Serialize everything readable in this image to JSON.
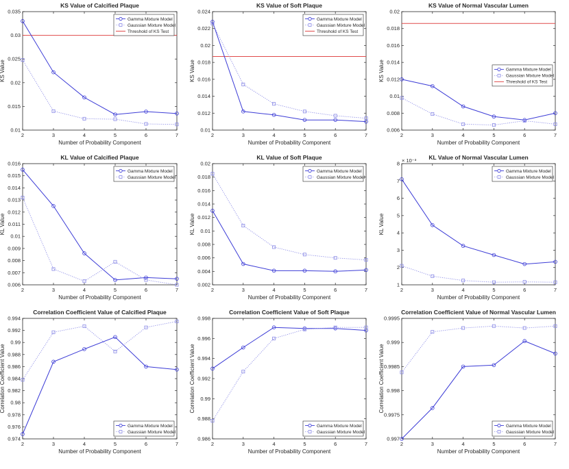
{
  "colors": {
    "gamma": "#3b3bd6",
    "gaussian": "#8a8ae6",
    "threshold": "#e04a4a",
    "axis": "#262626",
    "legend_border": "#262626"
  },
  "chart_data": [
    {
      "type": "line",
      "title": "KS Value of Calcified Plaque",
      "xlabel": "Number of Probability Component",
      "ylabel": "KS Value",
      "x": [
        2,
        3,
        4,
        5,
        6,
        7
      ],
      "xlim": [
        2,
        7
      ],
      "ylim": [
        0.01,
        0.035
      ],
      "yticks": [
        "0.01",
        "0.015",
        "0.02",
        "0.025",
        "0.03",
        "0.035"
      ],
      "exponent": "",
      "legend_position": "top-right",
      "series": [
        {
          "name": "Gamma Mixture Model",
          "style": "solid-circle",
          "values": [
            0.033,
            0.0222,
            0.0169,
            0.0133,
            0.0139,
            0.0135
          ]
        },
        {
          "name": "Gaussian Mixture Model",
          "style": "dotted-square",
          "values": [
            0.0248,
            0.014,
            0.0124,
            0.0123,
            0.0113,
            0.0112
          ]
        }
      ],
      "threshold": {
        "name": "Threshold of KS Test",
        "value": 0.03
      }
    },
    {
      "type": "line",
      "title": "KS Value of Soft Plaque",
      "xlabel": "Number of Probability Component",
      "ylabel": "KS Value",
      "x": [
        2,
        3,
        4,
        5,
        6,
        7
      ],
      "xlim": [
        2,
        7
      ],
      "ylim": [
        0.01,
        0.024
      ],
      "yticks": [
        "0.01",
        "0.012",
        "0.014",
        "0.016",
        "0.018",
        "0.02",
        "0.022",
        "0.024"
      ],
      "exponent": "",
      "legend_position": "top-right",
      "series": [
        {
          "name": "Gamma Mixture Model",
          "style": "solid-circle",
          "values": [
            0.0228,
            0.0122,
            0.0118,
            0.0112,
            0.0112,
            0.011
          ]
        },
        {
          "name": "Gaussian Mixture Model",
          "style": "dotted-square",
          "values": [
            0.0226,
            0.0154,
            0.0131,
            0.0122,
            0.0117,
            0.0114
          ]
        }
      ],
      "threshold": {
        "name": "Threshold of KS Test",
        "value": 0.0187
      }
    },
    {
      "type": "line",
      "title": "KS Value of Normal Vascular Lumen",
      "xlabel": "Number of Probability Component",
      "ylabel": "KS Value",
      "x": [
        2,
        3,
        4,
        5,
        6,
        7
      ],
      "xlim": [
        2,
        7
      ],
      "ylim": [
        0.006,
        0.02
      ],
      "yticks": [
        "0.006",
        "0.008",
        "0.01",
        "0.012",
        "0.014",
        "0.016",
        "0.018",
        "0.02"
      ],
      "exponent": "",
      "legend_position": "middle-right",
      "series": [
        {
          "name": "Gamma Mixture Model",
          "style": "solid-circle",
          "values": [
            0.012,
            0.0112,
            0.0088,
            0.0076,
            0.0072,
            0.008
          ]
        },
        {
          "name": "Gaussian Mixture Model",
          "style": "dotted-square",
          "values": [
            0.0098,
            0.0079,
            0.0067,
            0.0066,
            0.0071,
            0.0067
          ]
        }
      ],
      "threshold": {
        "name": "Threshold of KS Test",
        "value": 0.0186
      }
    },
    {
      "type": "line",
      "title": "KL Value of Calcified Plaque",
      "xlabel": "Number of Probability Component",
      "ylabel": "KL Value",
      "x": [
        2,
        3,
        4,
        5,
        6,
        7
      ],
      "xlim": [
        2,
        7
      ],
      "ylim": [
        0.006,
        0.016
      ],
      "yticks": [
        "0.006",
        "0.007",
        "0.008",
        "0.009",
        "0.01",
        "0.011",
        "0.012",
        "0.013",
        "0.014",
        "0.015",
        "0.016"
      ],
      "exponent": "",
      "legend_position": "top-right",
      "series": [
        {
          "name": "Gamma Mixture Model",
          "style": "solid-circle",
          "values": [
            0.0155,
            0.0125,
            0.0086,
            0.0064,
            0.0066,
            0.0065
          ]
        },
        {
          "name": "Gaussian Mixture Model",
          "style": "dotted-square",
          "values": [
            0.0132,
            0.0073,
            0.0063,
            0.0079,
            0.0064,
            0.006
          ]
        }
      ]
    },
    {
      "type": "line",
      "title": "KL Value of Soft Plaque",
      "xlabel": "Number of Probability Component",
      "ylabel": "KL Value",
      "x": [
        2,
        3,
        4,
        5,
        6,
        7
      ],
      "xlim": [
        2,
        7
      ],
      "ylim": [
        0.002,
        0.02
      ],
      "yticks": [
        "0.002",
        "0.004",
        "0.006",
        "0.008",
        "0.01",
        "0.012",
        "0.014",
        "0.016",
        "0.018",
        "0.02"
      ],
      "exponent": "",
      "legend_position": "top-right",
      "series": [
        {
          "name": "Gamma Mixture Model",
          "style": "solid-circle",
          "values": [
            0.013,
            0.0051,
            0.0041,
            0.0041,
            0.004,
            0.0042
          ]
        },
        {
          "name": "Gaussian Mixture Model",
          "style": "dotted-square",
          "values": [
            0.0185,
            0.0108,
            0.0076,
            0.0065,
            0.006,
            0.0057
          ]
        }
      ]
    },
    {
      "type": "line",
      "title": "KL Value of Normal Vascular Lumen",
      "xlabel": "Number of Probability Component",
      "ylabel": "KL Value",
      "x": [
        2,
        3,
        4,
        5,
        6,
        7
      ],
      "xlim": [
        2,
        7
      ],
      "ylim": [
        1,
        8
      ],
      "yticks": [
        "1",
        "2",
        "3",
        "4",
        "5",
        "6",
        "7",
        "8"
      ],
      "exponent": "× 10⁻³",
      "legend_position": "top-right",
      "series": [
        {
          "name": "Gamma Mixture Model",
          "style": "solid-circle",
          "values": [
            7.1,
            4.45,
            3.25,
            2.72,
            2.2,
            2.33
          ]
        },
        {
          "name": "Gaussian Mixture Model",
          "style": "dotted-square",
          "values": [
            2.1,
            1.5,
            1.25,
            1.15,
            1.17,
            1.15
          ]
        }
      ]
    },
    {
      "type": "line",
      "title": "Correlation Coefficient Value of Calcified Plaque",
      "xlabel": "Number of Probability Component",
      "ylabel": "Correlation Coefficient Value",
      "x": [
        2,
        3,
        4,
        5,
        6,
        7
      ],
      "xlim": [
        2,
        7
      ],
      "ylim": [
        0.974,
        0.994
      ],
      "yticks": [
        "0.974",
        "0.976",
        "0.978",
        "0.98",
        "0.982",
        "0.984",
        "0.986",
        "0.988",
        "0.99",
        "0.992",
        "0.994"
      ],
      "exponent": "",
      "legend_position": "bottom-right",
      "series": [
        {
          "name": "Gamma Mixture Model",
          "style": "solid-circle",
          "values": [
            0.9748,
            0.9868,
            0.9889,
            0.9909,
            0.986,
            0.9855
          ]
        },
        {
          "name": "Gaussian Mixture Model",
          "style": "dotted-square",
          "values": [
            0.9838,
            0.9917,
            0.9927,
            0.9885,
            0.9925,
            0.9935
          ]
        }
      ]
    },
    {
      "type": "line",
      "title": "Correlation Coefficient Value of Soft Plaque",
      "xlabel": "Number of Probability Component",
      "ylabel": "Correlation Coefficient Value",
      "x": [
        2,
        3,
        4,
        5,
        6,
        7
      ],
      "xlim": [
        2,
        7
      ],
      "ylim": [
        0.986,
        0.998
      ],
      "yticks": [
        "0.986",
        "0.988",
        "0.99",
        "0.992",
        "0.994",
        "0.996",
        "0.998"
      ],
      "exponent": "",
      "legend_position": "bottom-right",
      "series": [
        {
          "name": "Gamma Mixture Model",
          "style": "solid-circle",
          "values": [
            0.993,
            0.9951,
            0.9971,
            0.997,
            0.997,
            0.9968
          ]
        },
        {
          "name": "Gaussian Mixture Model",
          "style": "dotted-square",
          "values": [
            0.9878,
            0.9927,
            0.996,
            0.9969,
            0.9971,
            0.9971
          ]
        }
      ]
    },
    {
      "type": "line",
      "title": "Correlation Coefficient Value of Normal Vascular Lumen",
      "xlabel": "Number of Probability Component",
      "ylabel": "Correlation Coefficient Value",
      "x": [
        2,
        3,
        4,
        5,
        6,
        7
      ],
      "xlim": [
        2,
        7
      ],
      "ylim": [
        0.997,
        0.9995
      ],
      "yticks": [
        "0.997",
        "0.9975",
        "0.998",
        "0.9985",
        "0.999",
        "0.9995"
      ],
      "exponent": "",
      "legend_position": "bottom-right",
      "series": [
        {
          "name": "Gamma Mixture Model",
          "style": "solid-circle",
          "values": [
            0.997,
            0.99764,
            0.9985,
            0.99853,
            0.99903,
            0.99877
          ]
        },
        {
          "name": "Gaussian Mixture Model",
          "style": "dotted-square",
          "values": [
            0.99838,
            0.99922,
            0.9993,
            0.99934,
            0.9993,
            0.99934
          ]
        }
      ]
    }
  ]
}
